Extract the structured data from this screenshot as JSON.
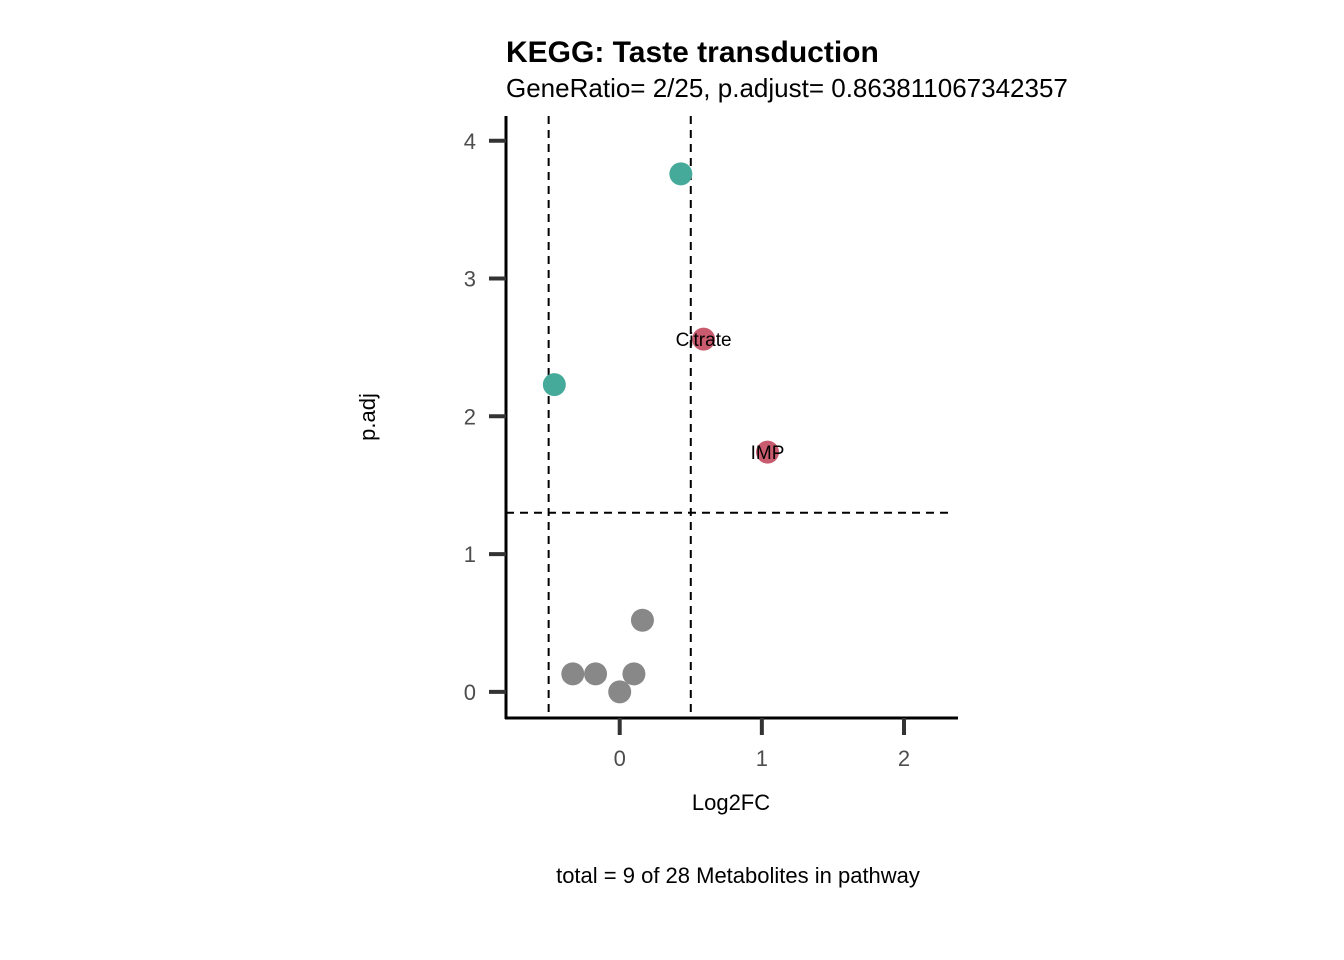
{
  "chart_data": {
    "type": "scatter",
    "title": "KEGG: Taste transduction",
    "subtitle": "GeneRatio= 2/25, p.adjust= 0.863811067342357",
    "xlabel": "Log2FC",
    "ylabel": "p.adj",
    "caption": "total = 9 of 28 Metabolites in pathway",
    "xlim": [
      -0.8,
      2.38
    ],
    "ylim": [
      -0.19,
      4.18
    ],
    "x_ticks": [
      0,
      1,
      2
    ],
    "y_ticks": [
      0,
      1,
      2,
      3,
      4
    ],
    "vlines": [
      -0.5,
      0.5
    ],
    "hline": 1.3,
    "grid": false,
    "legend": "none",
    "colors": {
      "up": "#c95b6e",
      "down": "#46aa9b",
      "ns": "#888888"
    },
    "points": [
      {
        "x": 0.43,
        "y": 3.76,
        "group": "down",
        "label": ""
      },
      {
        "x": 0.59,
        "y": 2.56,
        "group": "up",
        "label": "Citrate"
      },
      {
        "x": -0.46,
        "y": 2.23,
        "group": "down",
        "label": ""
      },
      {
        "x": 1.04,
        "y": 1.74,
        "group": "up",
        "label": "IMP"
      },
      {
        "x": 0.16,
        "y": 0.52,
        "group": "ns",
        "label": ""
      },
      {
        "x": -0.33,
        "y": 0.13,
        "group": "ns",
        "label": ""
      },
      {
        "x": -0.17,
        "y": 0.13,
        "group": "ns",
        "label": ""
      },
      {
        "x": 0.1,
        "y": 0.13,
        "group": "ns",
        "label": ""
      },
      {
        "x": 0.0,
        "y": 0.0,
        "group": "ns",
        "label": ""
      }
    ]
  }
}
